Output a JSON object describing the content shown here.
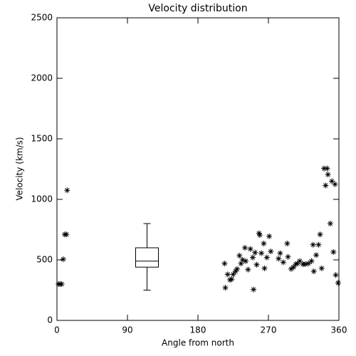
{
  "chart_data": {
    "type": "scatter",
    "title": "Velocity distribution",
    "x_label": "Angle from north",
    "y_label": "Velocity (km/s)",
    "color": "#000000",
    "marker": "asterisk",
    "x": [
      2,
      4,
      6,
      8,
      10,
      12,
      13,
      214,
      215,
      218,
      221,
      223,
      225,
      228,
      230,
      233,
      235,
      237,
      240,
      241,
      244,
      247,
      250,
      251,
      253,
      255,
      258,
      259,
      261,
      264,
      265,
      268,
      271,
      273,
      283,
      285,
      289,
      294,
      295,
      299,
      302,
      305,
      307,
      310,
      314,
      317,
      321,
      325,
      327,
      328,
      331,
      334,
      336,
      338,
      341,
      343,
      345,
      346,
      349,
      351,
      353,
      355,
      356,
      359
    ],
    "values": [
      300,
      300,
      300,
      505,
      710,
      710,
      1075,
      470,
      270,
      380,
      335,
      340,
      380,
      405,
      425,
      535,
      470,
      500,
      600,
      490,
      420,
      590,
      520,
      255,
      560,
      460,
      720,
      705,
      555,
      635,
      430,
      520,
      695,
      570,
      510,
      555,
      480,
      635,
      525,
      425,
      440,
      465,
      470,
      490,
      465,
      465,
      470,
      490,
      625,
      405,
      540,
      625,
      710,
      430,
      1255,
      1115,
      1255,
      1205,
      800,
      1150,
      565,
      1125,
      375,
      310
    ],
    "box": {
      "x": 115,
      "whisker_low": 250,
      "q1": 440,
      "median": 490,
      "q3": 600,
      "whisker_high": 800
    },
    "xlim": [
      0,
      360
    ],
    "xticks": [
      0,
      90,
      180,
      270,
      360
    ],
    "ylim": [
      0,
      2500
    ],
    "yticks": [
      0,
      500,
      1000,
      1500,
      2000,
      2500
    ]
  }
}
